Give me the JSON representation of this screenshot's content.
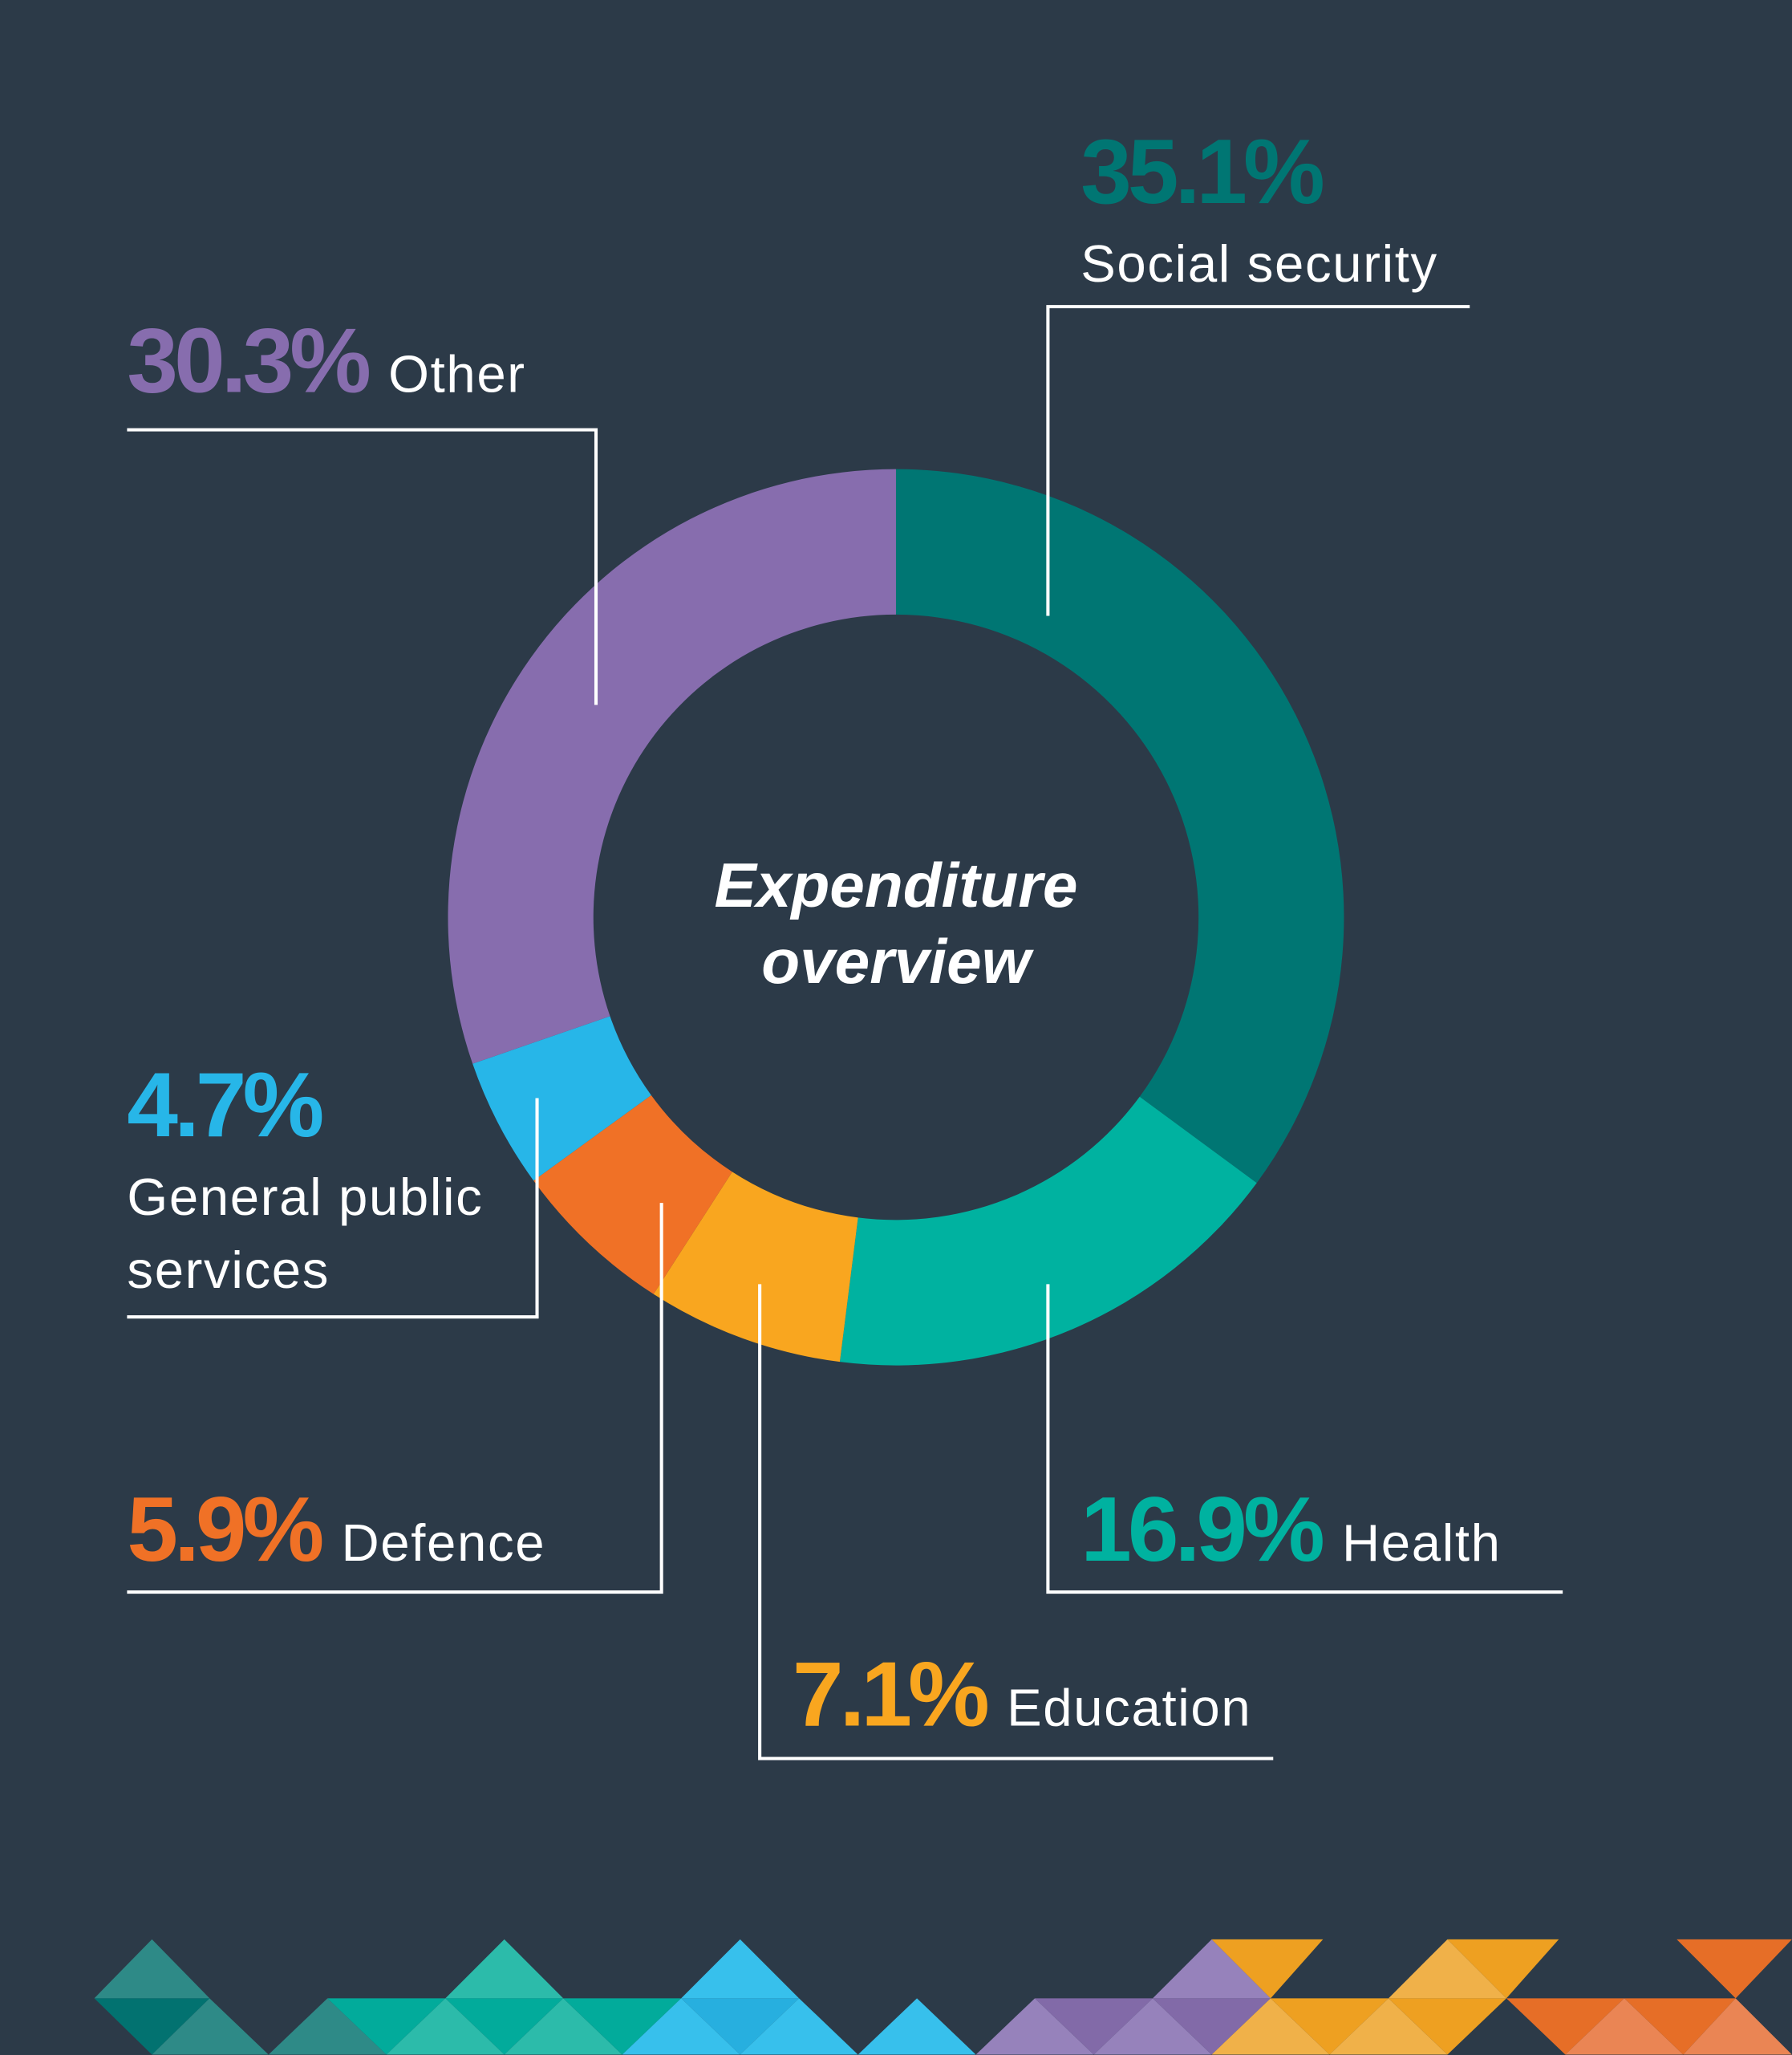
{
  "chart_data": {
    "type": "donut",
    "title": "Expenditure overview",
    "categories": [
      "Social security",
      "Health",
      "Education",
      "Defence",
      "General public services",
      "Other"
    ],
    "values": [
      35.1,
      16.9,
      7.1,
      5.9,
      4.7,
      30.3
    ],
    "value_labels": [
      "35.1%",
      "16.9%",
      "7.1%",
      "5.9%",
      "4.7%",
      "30.3%"
    ],
    "colors": [
      "#007673",
      "#00b2a0",
      "#f9a61f",
      "#f07126",
      "#27b6e8",
      "#876dae"
    ]
  }
}
